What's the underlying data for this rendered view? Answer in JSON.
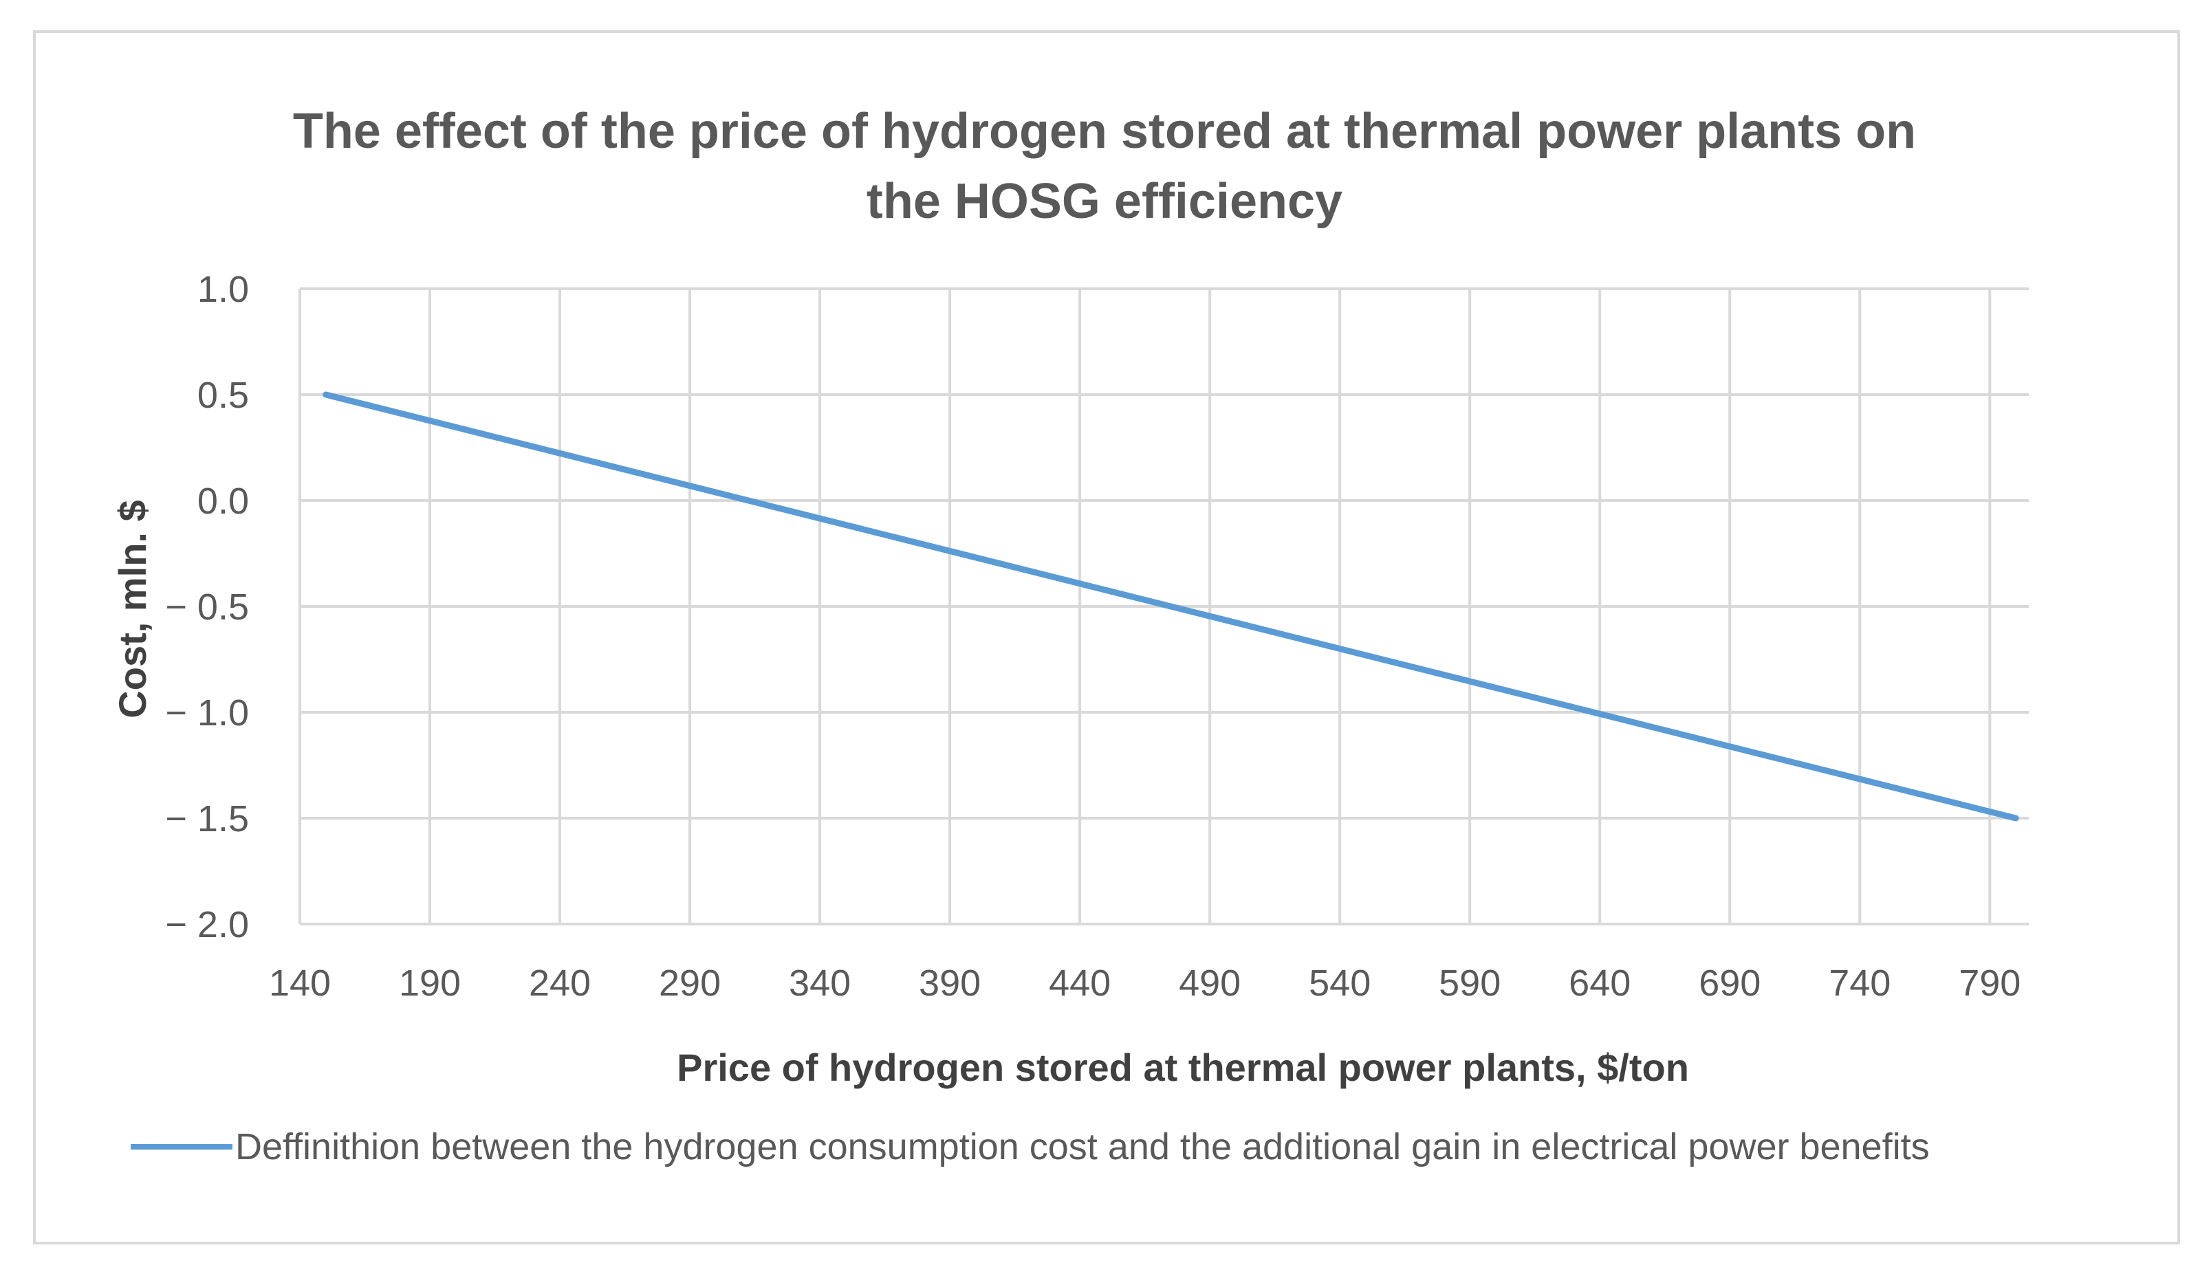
{
  "chart_data": {
    "type": "line",
    "title": "The effect of the price of hydrogen stored at thermal power plants on the HOSG efficiency",
    "title_lines": [
      "The effect of the price of hydrogen stored at thermal power plants on",
      "the HOSG efficiency"
    ],
    "xlabel": "Price of hydrogen stored at thermal power plants, $/ton",
    "ylabel": "Cost, mln. $",
    "x_ticks": [
      "140",
      "190",
      "240",
      "290",
      "340",
      "390",
      "440",
      "490",
      "540",
      "590",
      "640",
      "690",
      "740",
      "790"
    ],
    "y_ticks": [
      "1.0",
      "0.5",
      "0.0",
      "− 0.5",
      "− 1.0",
      "− 1.5",
      "− 2.0"
    ],
    "xlim": [
      140,
      805
    ],
    "ylim": [
      -2.0,
      1.0
    ],
    "grid": true,
    "legend_position": "bottom",
    "series": [
      {
        "name": "Deffinithion between the hydrogen consumption cost and the additional gain in electrical power benefits",
        "color": "#5b9bd5",
        "x": [
          150,
          800
        ],
        "y": [
          0.5,
          -1.5
        ]
      }
    ]
  }
}
